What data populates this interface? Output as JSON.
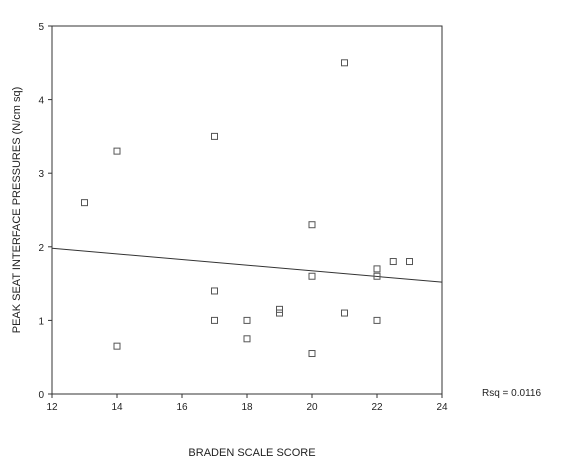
{
  "chart_data": {
    "type": "scatter",
    "title": "",
    "xlabel": "BRADEN SCALE SCORE",
    "ylabel": "PEAK SEAT INTERFACE PRESSURES (N/cm sq)",
    "xlim": [
      12,
      24
    ],
    "ylim": [
      0,
      5
    ],
    "xticks": [
      "12",
      "14",
      "16",
      "18",
      "20",
      "22",
      "24"
    ],
    "yticks": [
      "0",
      "1",
      "2",
      "3",
      "4",
      "5"
    ],
    "grid": false,
    "legend": "none",
    "annotation": "Rsq = 0.0116",
    "marker_color": "#555555",
    "line_color": "#333333",
    "points": [
      {
        "x": 13,
        "y": 2.6
      },
      {
        "x": 14,
        "y": 3.3
      },
      {
        "x": 14,
        "y": 0.65
      },
      {
        "x": 17,
        "y": 3.5
      },
      {
        "x": 17,
        "y": 1.4
      },
      {
        "x": 17,
        "y": 1.0
      },
      {
        "x": 18,
        "y": 1.0
      },
      {
        "x": 18,
        "y": 0.75
      },
      {
        "x": 19,
        "y": 1.15
      },
      {
        "x": 19,
        "y": 1.1
      },
      {
        "x": 20,
        "y": 2.3
      },
      {
        "x": 20,
        "y": 1.6
      },
      {
        "x": 20,
        "y": 0.55
      },
      {
        "x": 21,
        "y": 4.5
      },
      {
        "x": 21,
        "y": 1.1
      },
      {
        "x": 22,
        "y": 1.7
      },
      {
        "x": 22,
        "y": 1.6
      },
      {
        "x": 22,
        "y": 1.0
      },
      {
        "x": 22.5,
        "y": 1.8
      },
      {
        "x": 23,
        "y": 1.8
      }
    ],
    "fit_line": {
      "x": [
        12,
        24
      ],
      "y": [
        1.98,
        1.52
      ]
    }
  }
}
